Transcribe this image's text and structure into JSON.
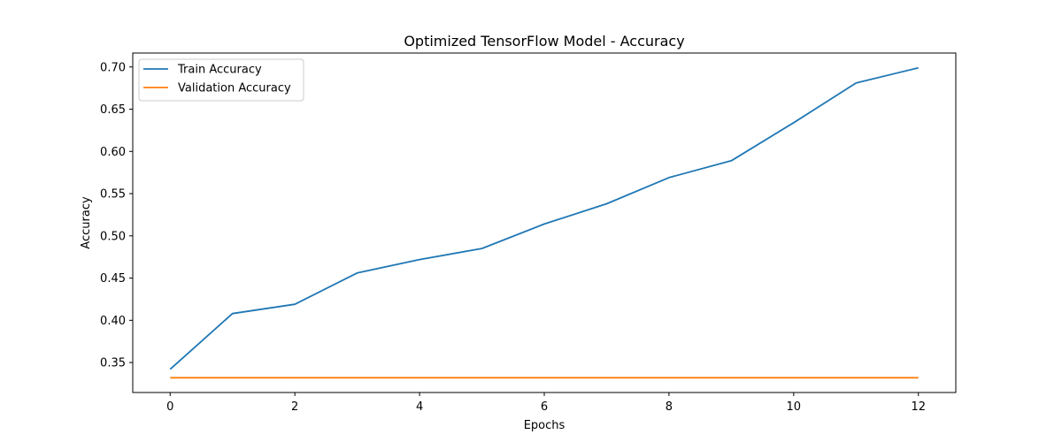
{
  "chart_data": {
    "type": "line",
    "title": "Optimized TensorFlow Model - Accuracy",
    "xlabel": "Epochs",
    "ylabel": "Accuracy",
    "x": [
      0,
      1,
      2,
      3,
      4,
      5,
      6,
      7,
      8,
      9,
      10,
      11,
      12
    ],
    "xlim": [
      -0.6,
      12.6
    ],
    "ylim": [
      0.3145,
      0.7165
    ],
    "x_ticks": [
      0,
      2,
      4,
      6,
      8,
      10,
      12
    ],
    "y_ticks": [
      0.35,
      0.4,
      0.45,
      0.5,
      0.55,
      0.6,
      0.65,
      0.7
    ],
    "y_tick_labels": [
      "0.35",
      "0.40",
      "0.45",
      "0.50",
      "0.55",
      "0.60",
      "0.65",
      "0.70"
    ],
    "grid": false,
    "legend_position": "upper-left",
    "series": [
      {
        "name": "Train Accuracy",
        "color": "#1f77b4",
        "values": [
          0.342,
          0.408,
          0.419,
          0.456,
          0.472,
          0.485,
          0.514,
          0.538,
          0.569,
          0.589,
          0.634,
          0.681,
          0.699
        ]
      },
      {
        "name": "Validation Accuracy",
        "color": "#ff7f0e",
        "values": [
          0.332,
          0.332,
          0.332,
          0.332,
          0.332,
          0.332,
          0.332,
          0.332,
          0.332,
          0.332,
          0.332,
          0.332,
          0.332
        ]
      }
    ]
  }
}
